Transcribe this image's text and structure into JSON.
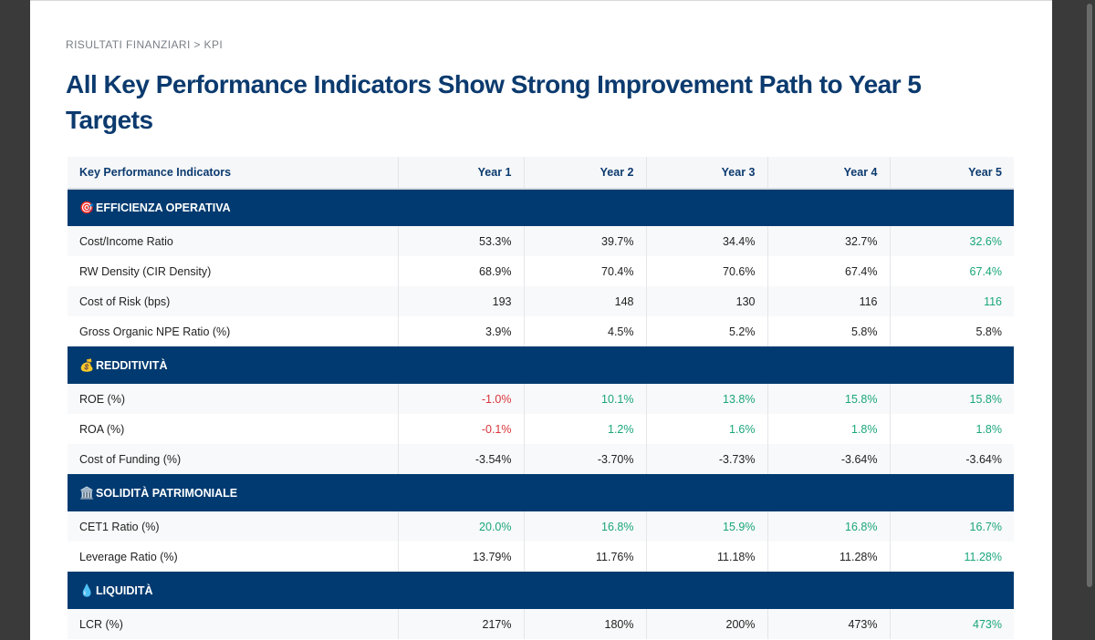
{
  "breadcrumb": "RISULTATI FINANZIARI > KPI",
  "title": "All Key Performance Indicators Show Strong Improvement Path to Year 5 Targets",
  "colors": {
    "header_navy": "#003a70",
    "positive": "#1aa67a",
    "negative": "#d9343a",
    "title": "#0b3a6e"
  },
  "table": {
    "headers": [
      "Key Performance Indicators",
      "Year 1",
      "Year 2",
      "Year 3",
      "Year 4",
      "Year 5"
    ],
    "sections": [
      {
        "icon": "🎯",
        "icon_name": "target-icon",
        "title": "EFFICIENZA OPERATIVA",
        "rows": [
          {
            "label": "Cost/Income Ratio",
            "values": [
              "53.3%",
              "39.7%",
              "34.4%",
              "32.7%",
              "32.6%"
            ],
            "tones": [
              "",
              "",
              "",
              "",
              "pos"
            ]
          },
          {
            "label": "RW Density (CIR Density)",
            "values": [
              "68.9%",
              "70.4%",
              "70.6%",
              "67.4%",
              "67.4%"
            ],
            "tones": [
              "",
              "",
              "",
              "",
              "pos"
            ]
          },
          {
            "label": "Cost of Risk (bps)",
            "values": [
              "193",
              "148",
              "130",
              "116",
              "116"
            ],
            "tones": [
              "",
              "",
              "",
              "",
              "pos"
            ]
          },
          {
            "label": "Gross Organic NPE Ratio (%)",
            "values": [
              "3.9%",
              "4.5%",
              "5.2%",
              "5.8%",
              "5.8%"
            ],
            "tones": [
              "",
              "",
              "",
              "",
              ""
            ]
          }
        ]
      },
      {
        "icon": "💰",
        "icon_name": "money-bag-icon",
        "title": "REDDITIVITÀ",
        "rows": [
          {
            "label": "ROE (%)",
            "values": [
              "-1.0%",
              "10.1%",
              "13.8%",
              "15.8%",
              "15.8%"
            ],
            "tones": [
              "neg",
              "pos",
              "pos",
              "pos",
              "pos"
            ]
          },
          {
            "label": "ROA (%)",
            "values": [
              "-0.1%",
              "1.2%",
              "1.6%",
              "1.8%",
              "1.8%"
            ],
            "tones": [
              "neg",
              "pos",
              "pos",
              "pos",
              "pos"
            ]
          },
          {
            "label": "Cost of Funding (%)",
            "values": [
              "-3.54%",
              "-3.70%",
              "-3.73%",
              "-3.64%",
              "-3.64%"
            ],
            "tones": [
              "",
              "",
              "",
              "",
              ""
            ]
          }
        ]
      },
      {
        "icon": "🏛️",
        "icon_name": "bank-building-icon",
        "title": "SOLIDITÀ PATRIMONIALE",
        "rows": [
          {
            "label": "CET1 Ratio (%)",
            "values": [
              "20.0%",
              "16.8%",
              "15.9%",
              "16.8%",
              "16.7%"
            ],
            "tones": [
              "pos",
              "pos",
              "pos",
              "pos",
              "pos"
            ]
          },
          {
            "label": "Leverage Ratio (%)",
            "values": [
              "13.79%",
              "11.76%",
              "11.18%",
              "11.28%",
              "11.28%"
            ],
            "tones": [
              "",
              "",
              "",
              "",
              "pos"
            ]
          }
        ]
      },
      {
        "icon": "💧",
        "icon_name": "droplet-icon",
        "title": "LIQUIDITÀ",
        "rows": [
          {
            "label": "LCR (%)",
            "values": [
              "217%",
              "180%",
              "200%",
              "473%",
              "473%"
            ],
            "tones": [
              "",
              "",
              "",
              "",
              "pos"
            ]
          }
        ]
      }
    ]
  }
}
